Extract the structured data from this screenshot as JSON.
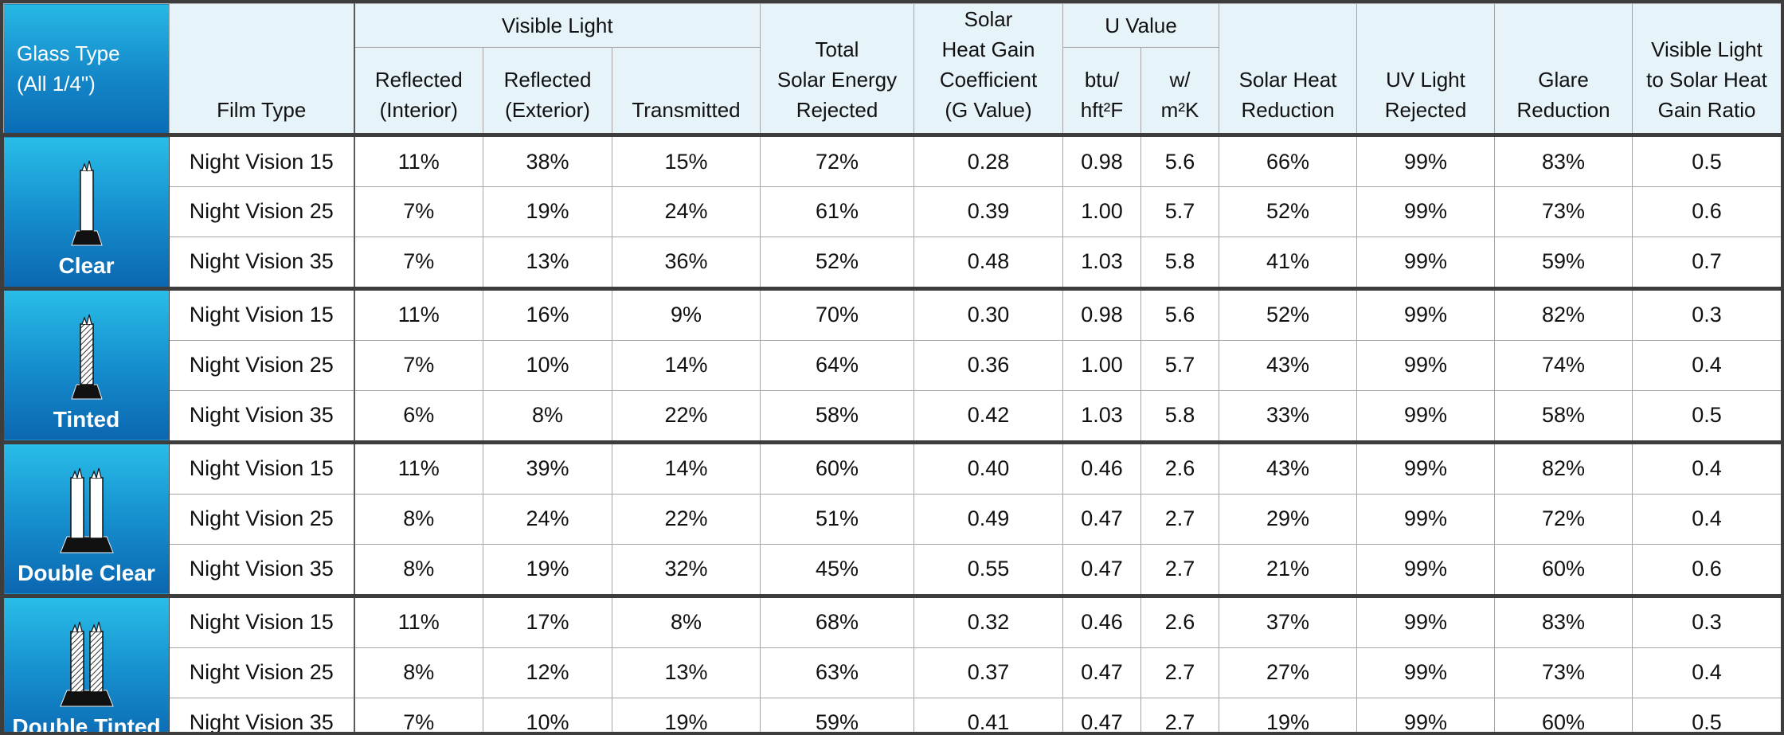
{
  "headers": {
    "glass_type": [
      "Glass Type",
      "(All 1/4\")"
    ],
    "film_type": "Film Type",
    "visible_light": "Visible Light",
    "reflected_interior": [
      "Reflected",
      "(Interior)"
    ],
    "reflected_exterior": [
      "Reflected",
      "(Exterior)"
    ],
    "transmitted": "Transmitted",
    "total_solar": [
      "Total",
      "Solar Energy",
      "Rejected"
    ],
    "shgc": [
      "Solar",
      "Heat Gain",
      "Coefficient",
      "(G Value)"
    ],
    "u_value": "U Value",
    "btu": [
      "btu/",
      "hft²F"
    ],
    "wm2k": [
      "w/",
      "m²K"
    ],
    "solar_heat_reduction": [
      "Solar Heat",
      "Reduction"
    ],
    "uv_rejected": [
      "UV Light",
      "Rejected"
    ],
    "glare_reduction": [
      "Glare",
      "Reduction"
    ],
    "vl_ratio": [
      "Visible Light",
      "to Solar Heat",
      "Gain Ratio"
    ]
  },
  "groups": [
    {
      "glass": "Clear",
      "icon": "clear-single-pane-icon",
      "rows": [
        {
          "film": "Night Vision 15",
          "ri": "11%",
          "re": "38%",
          "tr": "15%",
          "tse": "72%",
          "shgc": "0.28",
          "btu": "0.98",
          "wm": "5.6",
          "shr": "66%",
          "uv": "99%",
          "glare": "83%",
          "ratio": "0.5"
        },
        {
          "film": "Night Vision 25",
          "ri": "7%",
          "re": "19%",
          "tr": "24%",
          "tse": "61%",
          "shgc": "0.39",
          "btu": "1.00",
          "wm": "5.7",
          "shr": "52%",
          "uv": "99%",
          "glare": "73%",
          "ratio": "0.6"
        },
        {
          "film": "Night Vision 35",
          "ri": "7%",
          "re": "13%",
          "tr": "36%",
          "tse": "52%",
          "shgc": "0.48",
          "btu": "1.03",
          "wm": "5.8",
          "shr": "41%",
          "uv": "99%",
          "glare": "59%",
          "ratio": "0.7"
        }
      ]
    },
    {
      "glass": "Tinted",
      "icon": "tinted-single-pane-icon",
      "rows": [
        {
          "film": "Night Vision 15",
          "ri": "11%",
          "re": "16%",
          "tr": "9%",
          "tse": "70%",
          "shgc": "0.30",
          "btu": "0.98",
          "wm": "5.6",
          "shr": "52%",
          "uv": "99%",
          "glare": "82%",
          "ratio": "0.3"
        },
        {
          "film": "Night Vision 25",
          "ri": "7%",
          "re": "10%",
          "tr": "14%",
          "tse": "64%",
          "shgc": "0.36",
          "btu": "1.00",
          "wm": "5.7",
          "shr": "43%",
          "uv": "99%",
          "glare": "74%",
          "ratio": "0.4"
        },
        {
          "film": "Night Vision 35",
          "ri": "6%",
          "re": "8%",
          "tr": "22%",
          "tse": "58%",
          "shgc": "0.42",
          "btu": "1.03",
          "wm": "5.8",
          "shr": "33%",
          "uv": "99%",
          "glare": "58%",
          "ratio": "0.5"
        }
      ]
    },
    {
      "glass": "Double Clear",
      "icon": "double-clear-pane-icon",
      "rows": [
        {
          "film": "Night Vision 15",
          "ri": "11%",
          "re": "39%",
          "tr": "14%",
          "tse": "60%",
          "shgc": "0.40",
          "btu": "0.46",
          "wm": "2.6",
          "shr": "43%",
          "uv": "99%",
          "glare": "82%",
          "ratio": "0.4"
        },
        {
          "film": "Night Vision 25",
          "ri": "8%",
          "re": "24%",
          "tr": "22%",
          "tse": "51%",
          "shgc": "0.49",
          "btu": "0.47",
          "wm": "2.7",
          "shr": "29%",
          "uv": "99%",
          "glare": "72%",
          "ratio": "0.4"
        },
        {
          "film": "Night Vision 35",
          "ri": "8%",
          "re": "19%",
          "tr": "32%",
          "tse": "45%",
          "shgc": "0.55",
          "btu": "0.47",
          "wm": "2.7",
          "shr": "21%",
          "uv": "99%",
          "glare": "60%",
          "ratio": "0.6"
        }
      ]
    },
    {
      "glass": "Double Tinted",
      "icon": "double-tinted-pane-icon",
      "rows": [
        {
          "film": "Night Vision 15",
          "ri": "11%",
          "re": "17%",
          "tr": "8%",
          "tse": "68%",
          "shgc": "0.32",
          "btu": "0.46",
          "wm": "2.6",
          "shr": "37%",
          "uv": "99%",
          "glare": "83%",
          "ratio": "0.3"
        },
        {
          "film": "Night Vision 25",
          "ri": "8%",
          "re": "12%",
          "tr": "13%",
          "tse": "63%",
          "shgc": "0.37",
          "btu": "0.47",
          "wm": "2.7",
          "shr": "27%",
          "uv": "99%",
          "glare": "73%",
          "ratio": "0.4"
        },
        {
          "film": "Night Vision 35",
          "ri": "7%",
          "re": "10%",
          "tr": "19%",
          "tse": "59%",
          "shgc": "0.41",
          "btu": "0.47",
          "wm": "2.7",
          "shr": "19%",
          "uv": "99%",
          "glare": "60%",
          "ratio": "0.5"
        }
      ]
    }
  ],
  "colors": {
    "header_bg": "#e6f4fa",
    "glass_gradient_top": "#27b8e5",
    "glass_gradient_bottom": "#0a6cb5",
    "divider": "#3d3d3d"
  }
}
